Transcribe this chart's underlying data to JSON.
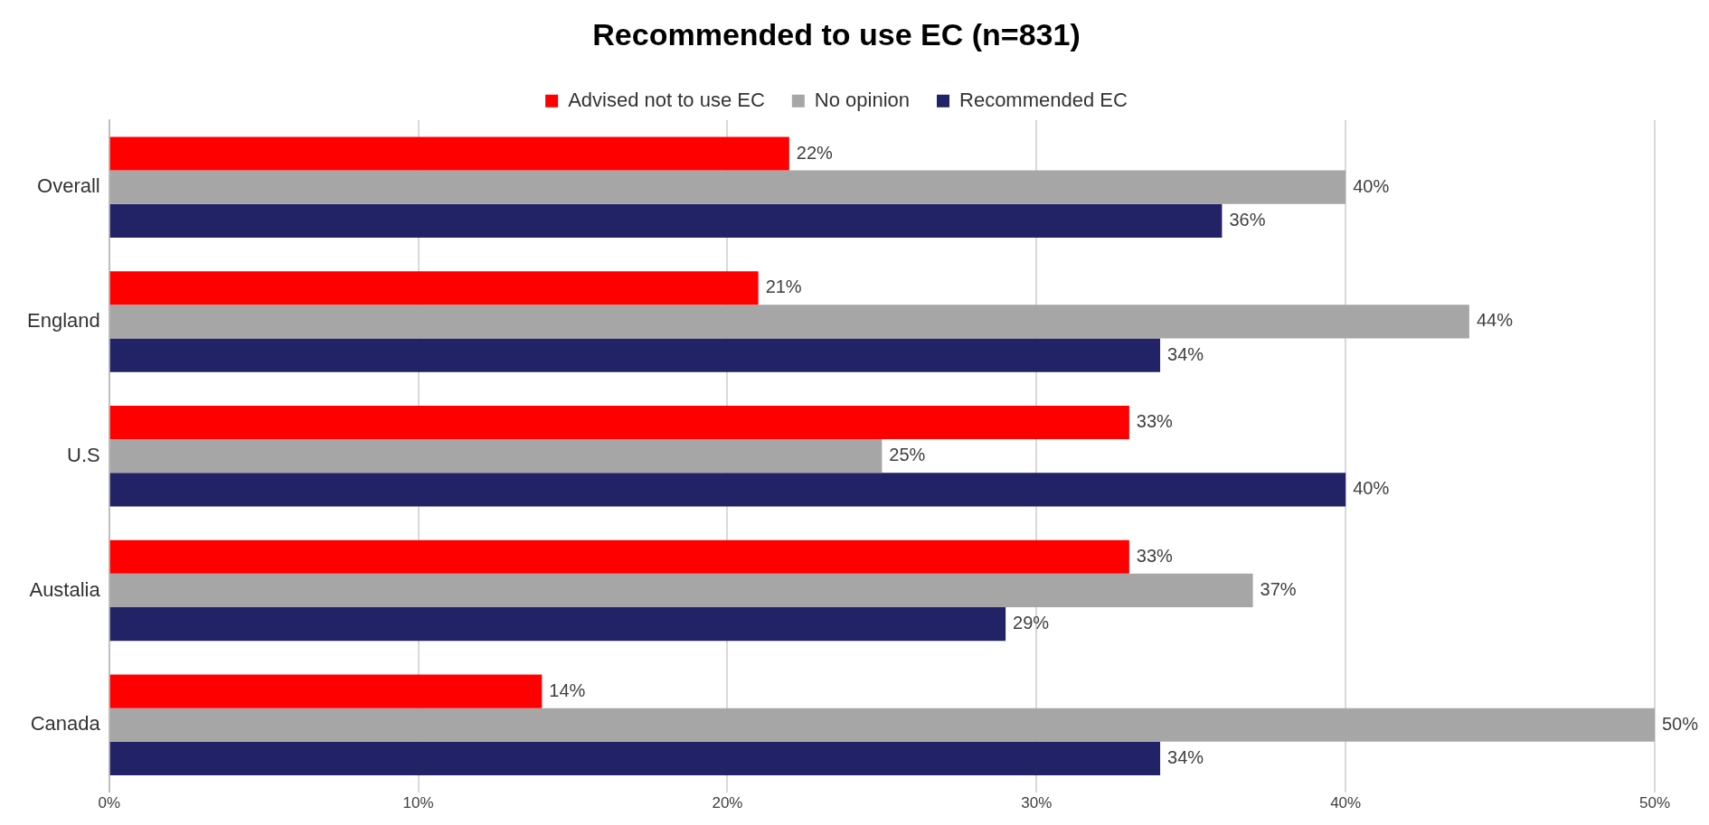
{
  "chart_data": {
    "type": "bar",
    "orientation": "horizontal",
    "title": "Recommended to use EC (n=831)",
    "categories": [
      "Overall",
      "England",
      "U.S",
      "Austalia",
      "Canada"
    ],
    "series": [
      {
        "name": "Advised not to use EC",
        "color": "#ff0000",
        "values": [
          22,
          21,
          33,
          33,
          14
        ],
        "value_labels": [
          "22%",
          "21%",
          "33%",
          "33%",
          "14%"
        ]
      },
      {
        "name": "No opinion",
        "color": "#a6a6a6",
        "values": [
          40,
          44,
          25,
          37,
          50
        ],
        "value_labels": [
          "40%",
          "44%",
          "25%",
          "37%",
          "50%"
        ]
      },
      {
        "name": "Recommended EC",
        "color": "#222266",
        "values": [
          36,
          34,
          40,
          29,
          34
        ],
        "value_labels": [
          "36%",
          "34%",
          "40%",
          "29%",
          "34%"
        ]
      }
    ],
    "xlim": [
      0,
      50
    ],
    "xticks": [
      {
        "value": 0,
        "label": "0%"
      },
      {
        "value": 10,
        "label": "10%"
      },
      {
        "value": 20,
        "label": "20%"
      },
      {
        "value": 30,
        "label": "30%"
      },
      {
        "value": 40,
        "label": "40%"
      },
      {
        "value": 50,
        "label": "50%"
      }
    ],
    "grid": "x",
    "legend": "top"
  }
}
